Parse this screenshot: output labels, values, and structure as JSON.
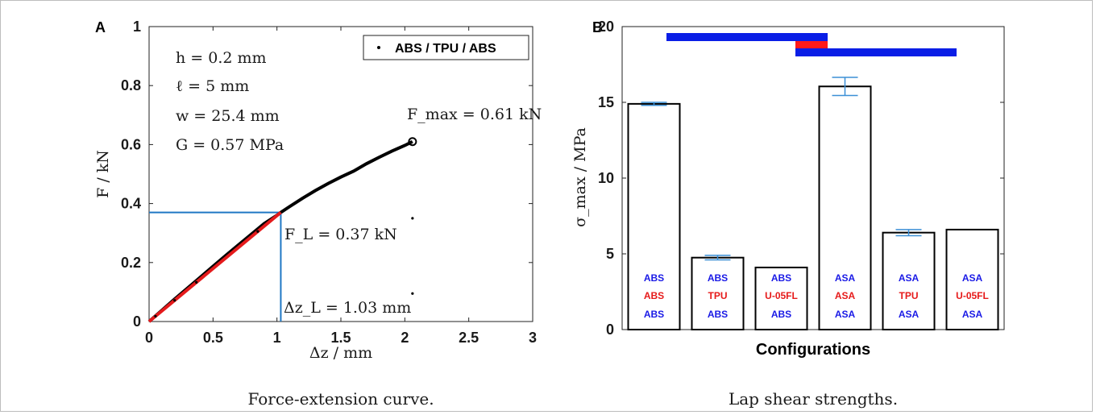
{
  "chart_data": [
    {
      "panel": "A",
      "type": "line",
      "caption": "Force-extension curve.",
      "xlabel": "Δz / mm",
      "ylabel": "F / kN",
      "xlim": [
        0,
        3
      ],
      "ylim": [
        0,
        1
      ],
      "xticks": [
        "0",
        "0.5",
        "1",
        "1.5",
        "2",
        "2.5",
        "3"
      ],
      "yticks": [
        "0",
        "0.2",
        "0.4",
        "0.6",
        "0.8",
        "1"
      ],
      "legend": "ABS / TPU / ABS",
      "legend_position": "top-right",
      "parameters": [
        "h = 0.2 mm",
        "ℓ = 5 mm",
        "w = 25.4 mm",
        "G = 0.57 MPa"
      ],
      "series": [
        {
          "name": "ABS / TPU / ABS",
          "color": "#000000",
          "x": [
            0,
            0.1,
            0.2,
            0.3,
            0.4,
            0.5,
            0.6,
            0.7,
            0.8,
            0.9,
            1.0,
            1.03,
            1.1,
            1.2,
            1.3,
            1.4,
            1.5,
            1.6,
            1.7,
            1.8,
            1.9,
            2.0,
            2.06
          ],
          "y": [
            0,
            0.038,
            0.076,
            0.113,
            0.15,
            0.187,
            0.224,
            0.26,
            0.296,
            0.332,
            0.36,
            0.37,
            0.39,
            0.418,
            0.444,
            0.468,
            0.49,
            0.51,
            0.535,
            0.557,
            0.578,
            0.597,
            0.61
          ]
        },
        {
          "name": "linear region",
          "color": "#e41a1c",
          "x": [
            0,
            1.03
          ],
          "y": [
            0,
            0.37
          ]
        }
      ],
      "annotations": {
        "fmax": {
          "label": "F_max = 0.61 kN",
          "x": 2.06,
          "y": 0.61
        },
        "fl": {
          "label": "F_L = 0.37 kN",
          "x": 1.03,
          "y": 0.37
        },
        "dzl": {
          "label": "Δz_L = 1.03 mm"
        }
      },
      "guide_color": "#1f77c4"
    },
    {
      "panel": "B",
      "type": "bar",
      "caption": "Lap shear strengths.",
      "xlabel": "Configurations",
      "ylabel": "σ_max / MPa",
      "ylim": [
        0,
        20
      ],
      "yticks": [
        "0",
        "5",
        "10",
        "15",
        "20"
      ],
      "categories": [
        [
          "ABS",
          "ABS",
          "ABS"
        ],
        [
          "ABS",
          "TPU",
          "ABS"
        ],
        [
          "ABS",
          "U-05FL",
          "ABS"
        ],
        [
          "ASA",
          "ASA",
          "ASA"
        ],
        [
          "ASA",
          "TPU",
          "ASA"
        ],
        [
          "ASA",
          "U-05FL",
          "ASA"
        ]
      ],
      "values": [
        14.9,
        4.75,
        4.1,
        16.05,
        6.4,
        6.6
      ],
      "errors": [
        0.1,
        0.15,
        null,
        0.6,
        0.2,
        null
      ],
      "layer_colors": {
        "outer": "#1a1ae6",
        "middle": "#e61a1a"
      },
      "significance_bars": [
        {
          "from": 1,
          "to": 4,
          "level": 19.2,
          "color": "#0a1ee6"
        },
        {
          "from": 4,
          "to": 4.0,
          "level": 18.8,
          "color": "#ff1a1a"
        },
        {
          "from": 4,
          "to": 7,
          "level": 18.2,
          "color": "#0a1ee6"
        }
      ]
    }
  ]
}
